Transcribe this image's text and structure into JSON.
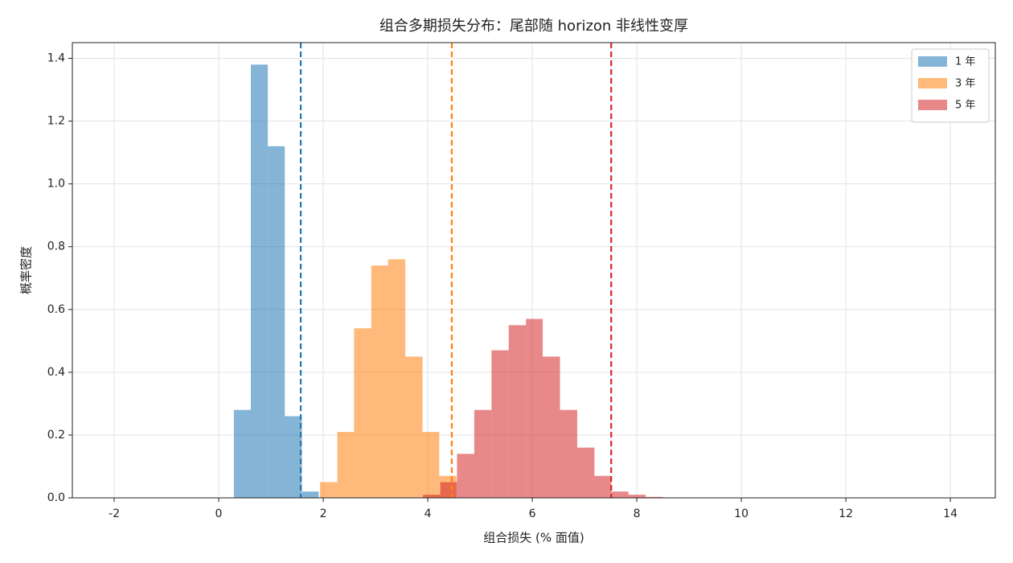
{
  "chart_data": {
    "type": "histogram",
    "title": "组合多期损失分布：尾部随 horizon 非线性变厚",
    "xlabel": "组合损失 (% 面值)",
    "ylabel": "概率密度",
    "xlim": [
      -2.8,
      14.86
    ],
    "ylim": [
      0,
      1.45
    ],
    "xticks": [
      -2,
      0,
      2,
      4,
      6,
      8,
      10,
      12,
      14
    ],
    "yticks": [
      {
        "value": 0,
        "label": "0.0"
      },
      0.2,
      0.4,
      0.6,
      0.8,
      {
        "value": 1,
        "label": "1.0"
      },
      1.2,
      1.4
    ],
    "grid": true,
    "legend": "upper right",
    "alpha": 0.55,
    "series": [
      {
        "name": "1 年",
        "color": "#1f77b4",
        "bins": [
          0.29,
          0.615,
          0.94,
          1.265,
          1.59,
          1.915
        ],
        "values": [
          0.28,
          1.38,
          1.12,
          0.26,
          0.02
        ],
        "quantile": 1.57
      },
      {
        "name": "3 年",
        "color": "#ff7f0e",
        "bins": [
          1.94,
          2.27,
          2.59,
          2.92,
          3.24,
          3.57,
          3.9,
          4.22,
          4.55
        ],
        "values": [
          0.05,
          0.21,
          0.54,
          0.74,
          0.76,
          0.45,
          0.21,
          0.07
        ],
        "quantile": 4.46
      },
      {
        "name": "5 年",
        "color": "#d62728",
        "bins": [
          3.91,
          4.24,
          4.56,
          4.89,
          5.22,
          5.55,
          5.88,
          6.2,
          6.53,
          6.86,
          7.19,
          7.51,
          7.84,
          8.17,
          8.5
        ],
        "values": [
          0.01,
          0.05,
          0.14,
          0.28,
          0.47,
          0.55,
          0.57,
          0.45,
          0.28,
          0.16,
          0.07,
          0.02,
          0.01,
          0.003
        ],
        "quantile": 7.51
      }
    ]
  }
}
